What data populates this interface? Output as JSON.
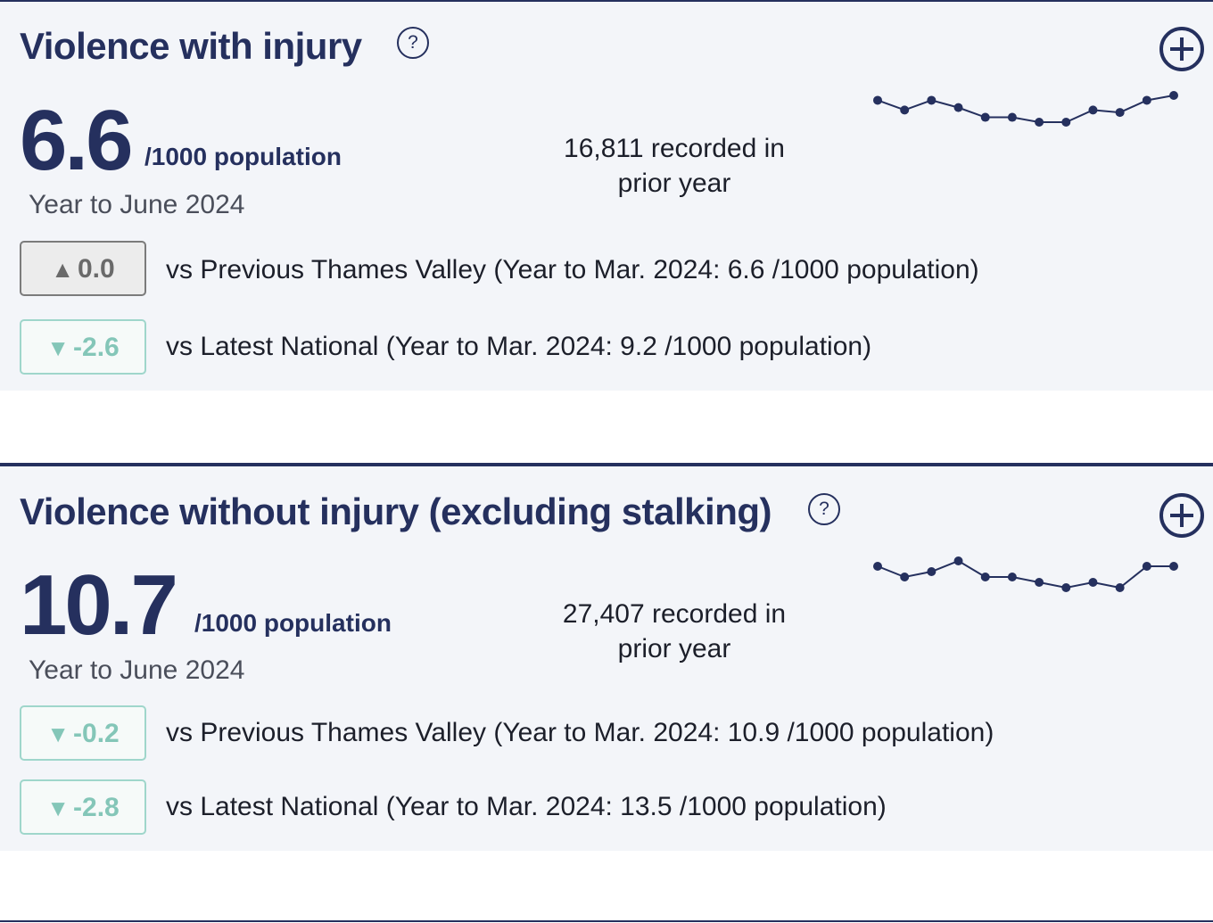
{
  "cards": [
    {
      "title": "Violence with injury",
      "help_glyph": "?",
      "value": "6.6",
      "unit": "/1000 population",
      "period": "Year to June 2024",
      "recorded_line1": "16,811 recorded in",
      "recorded_line2": "prior year",
      "trend": [
        6.9,
        6.5,
        6.9,
        6.6,
        6.2,
        6.2,
        6.0,
        6.0,
        6.5,
        6.4,
        6.9,
        7.1
      ],
      "comparisons": [
        {
          "direction": "up",
          "arrow": "▲",
          "delta": "0.0",
          "status": "neutral",
          "text": "vs Previous Thames Valley (Year to Mar. 2024: 6.6 /1000 population)"
        },
        {
          "direction": "down",
          "arrow": "▼",
          "delta": "-2.6",
          "status": "better",
          "text": "vs Latest National (Year to Mar. 2024: 9.2 /1000 population)"
        }
      ]
    },
    {
      "title": "Violence without injury (excluding stalking)",
      "help_glyph": "?",
      "value": "10.7",
      "unit": "/1000 population",
      "period": "Year to June 2024",
      "recorded_line1": "27,407 recorded in",
      "recorded_line2": "prior year",
      "trend": [
        11.1,
        10.9,
        11.0,
        11.2,
        10.9,
        10.9,
        10.8,
        10.7,
        10.8,
        10.7,
        11.1,
        11.1
      ],
      "comparisons": [
        {
          "direction": "down",
          "arrow": "▼",
          "delta": "-0.2",
          "status": "better",
          "text": "vs Previous Thames Valley (Year to Mar. 2024: 10.9 /1000 population)"
        },
        {
          "direction": "down",
          "arrow": "▼",
          "delta": "-2.8",
          "status": "better",
          "text": "vs Latest National (Year to Mar. 2024: 13.5 /1000 population)"
        }
      ]
    }
  ],
  "colors": {
    "primary": "#25305e",
    "card_bg": "#f3f5f9",
    "neutral_badge": "#6a6a6a",
    "better_badge": "#84c6b8"
  }
}
